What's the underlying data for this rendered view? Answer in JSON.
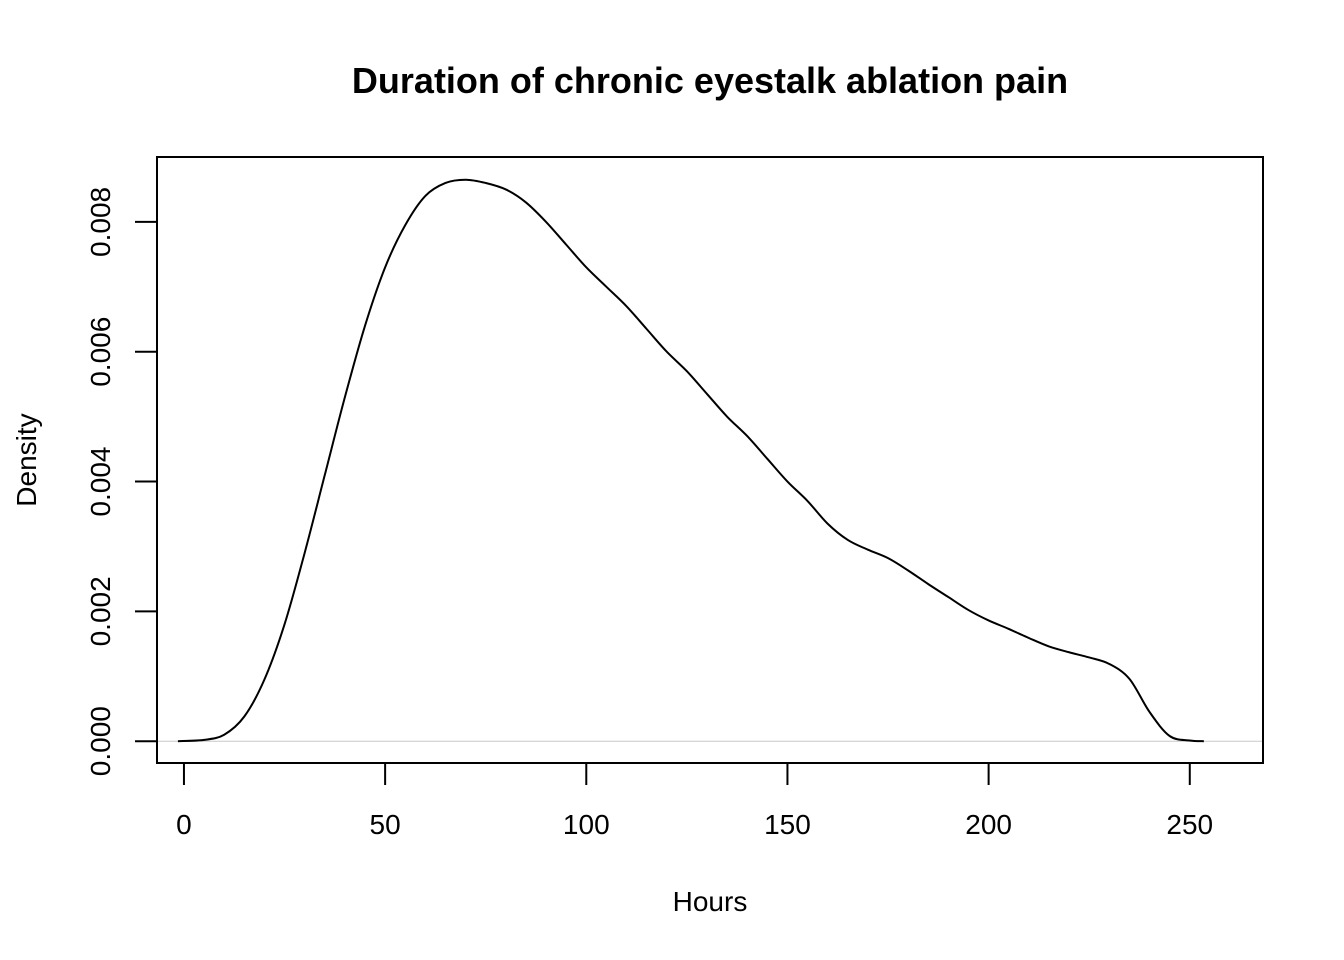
{
  "chart_data": {
    "type": "line",
    "title": "Duration of chronic eyestalk ablation pain",
    "xlabel": "Hours",
    "ylabel": "Density",
    "xlim": [
      -6.7,
      268.2
    ],
    "ylim": [
      -0.000336,
      0.009
    ],
    "x_ticks": [
      0,
      50,
      100,
      150,
      200,
      250
    ],
    "x_tick_labels": [
      "0",
      "50",
      "100",
      "150",
      "200",
      "250"
    ],
    "y_ticks": [
      0.0,
      0.002,
      0.004,
      0.006,
      0.008
    ],
    "y_tick_labels": [
      "0.000",
      "0.002",
      "0.004",
      "0.006",
      "0.008"
    ],
    "zero_line": true,
    "grid": false,
    "series": [
      {
        "color": "#000000",
        "x": [
          -1.5,
          5,
          10,
          15,
          20,
          25,
          30,
          35,
          40,
          45,
          50,
          55,
          60,
          65,
          70,
          75,
          80,
          85,
          90,
          95,
          100,
          105,
          110,
          115,
          120,
          125,
          130,
          135,
          140,
          145,
          150,
          155,
          160,
          165,
          170,
          175,
          180,
          185,
          190,
          195,
          200,
          205,
          210,
          215,
          220,
          225,
          230,
          235,
          240,
          245,
          250,
          253.5
        ],
        "y": [
          0.0,
          2e-05,
          0.0001,
          0.00038,
          0.00095,
          0.0018,
          0.0029,
          0.0041,
          0.0053,
          0.0064,
          0.0073,
          0.00795,
          0.0084,
          0.0086,
          0.00865,
          0.0086,
          0.0085,
          0.0083,
          0.008,
          0.00765,
          0.0073,
          0.007,
          0.0067,
          0.00635,
          0.006,
          0.0057,
          0.00535,
          0.005,
          0.0047,
          0.00435,
          0.004,
          0.0037,
          0.00335,
          0.0031,
          0.00295,
          0.00282,
          0.00263,
          0.00242,
          0.00222,
          0.00202,
          0.00186,
          0.00173,
          0.00159,
          0.00146,
          0.00137,
          0.00129,
          0.00119,
          0.00096,
          0.00045,
          8e-05,
          1e-05,
          0.0
        ]
      }
    ]
  }
}
